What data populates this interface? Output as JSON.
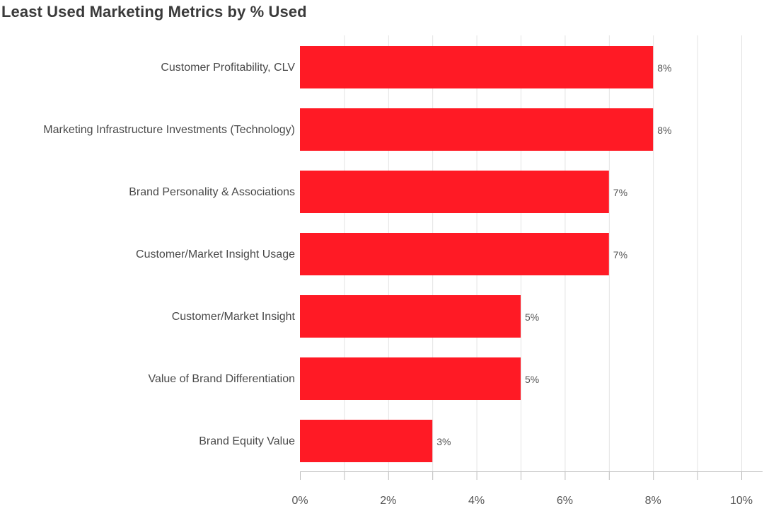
{
  "chart_data": {
    "type": "bar",
    "orientation": "horizontal",
    "title": "Least Used Marketing Metrics by % Used",
    "categories": [
      "Customer Profitability, CLV",
      "Marketing Infrastructure Investments (Technology)",
      "Brand Personality & Associations",
      "Customer/Market Insight Usage",
      "Customer/Market Insight",
      "Value of Brand Differentiation",
      "Brand Equity Value"
    ],
    "values": [
      8,
      8,
      7,
      7,
      5,
      5,
      3
    ],
    "value_labels": [
      "8%",
      "8%",
      "7%",
      "7%",
      "5%",
      "5%",
      "3%"
    ],
    "xlim": [
      0,
      10
    ],
    "xticks": [
      0,
      2,
      4,
      6,
      8,
      10
    ],
    "xtick_labels": [
      "0%",
      "2%",
      "4%",
      "6%",
      "8%",
      "10%"
    ],
    "xlabel": "",
    "ylabel": "",
    "grid": true,
    "legend": "none",
    "bar_color": "#ff1a25",
    "grid_color": "#e3e3e3",
    "axis_color": "#bdbdbd"
  }
}
